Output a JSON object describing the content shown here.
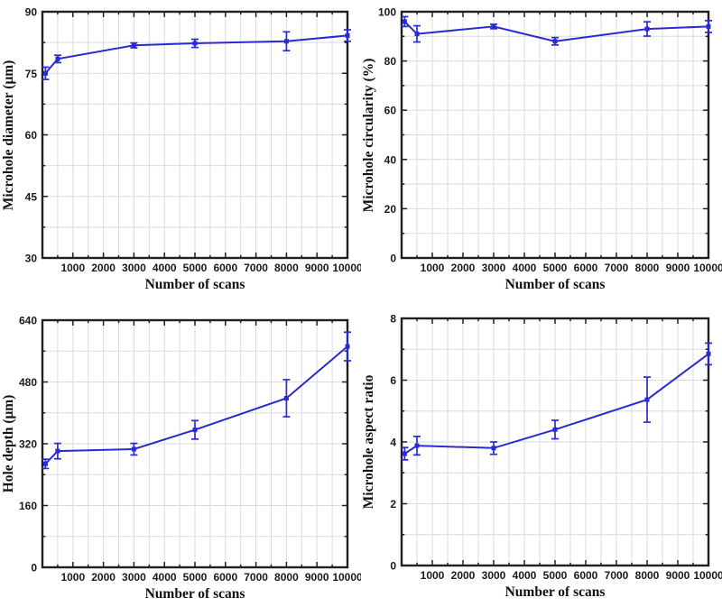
{
  "style": {
    "accent": "#2a2ad2",
    "grid_color": "#d8dbe2",
    "axis_color": "#1f1f1f",
    "background": "#ffffff"
  },
  "chart_data": {
    "type": "line",
    "shared_x": [
      100,
      500,
      3000,
      5000,
      8000,
      10000
    ],
    "shared_xlabel": "Number of scans",
    "note": "Four-panel figure of femtosecond-laser microhole drilling metrics vs number of scans; blue lines with square markers and vertical error bars; light gray grid at every minor tick; black box axes."
  },
  "charts": [
    {
      "name": "microhole-diameter",
      "type": "line",
      "xlabel": "Number of scans",
      "ylabel": "Microhole diameter (μm)",
      "x": [
        100,
        500,
        3000,
        5000,
        8000,
        10000
      ],
      "y": [
        75,
        78.5,
        81.8,
        82.3,
        82.8,
        84.2
      ],
      "yerr": [
        1.5,
        0.9,
        0.6,
        1.0,
        2.3,
        1.4
      ],
      "xlim": [
        0,
        10000
      ],
      "ylim": [
        30,
        90
      ],
      "xtick_major": 1000,
      "xtick_minor": 500,
      "ytick_major": 15,
      "ytick_minor": 7.5,
      "grid": true,
      "legend": "none"
    },
    {
      "name": "microhole-circularity",
      "type": "line",
      "xlabel": "Number of scans",
      "ylabel": "Microhole circularity (%)",
      "x": [
        100,
        500,
        3000,
        5000,
        8000,
        10000
      ],
      "y": [
        96,
        91,
        94,
        88,
        93,
        94
      ],
      "yerr": [
        2.0,
        3.3,
        0.9,
        1.5,
        2.9,
        2.4
      ],
      "xlim": [
        0,
        10000
      ],
      "ylim": [
        0,
        100
      ],
      "xtick_major": 1000,
      "xtick_minor": 500,
      "ytick_major": 20,
      "ytick_minor": 10,
      "grid": true,
      "legend": "none"
    },
    {
      "name": "hole-depth",
      "type": "line",
      "xlabel": "Number of scans",
      "ylabel": "Hole depth (μm)",
      "x": [
        100,
        500,
        3000,
        5000,
        8000,
        10000
      ],
      "y": [
        268,
        301,
        306,
        356,
        438,
        572
      ],
      "yerr": [
        12,
        20,
        15,
        24,
        48,
        37
      ],
      "xlim": [
        0,
        10000
      ],
      "ylim": [
        0,
        640
      ],
      "xtick_major": 1000,
      "xtick_minor": 500,
      "ytick_major": 160,
      "ytick_minor": 80,
      "grid": true,
      "legend": "none"
    },
    {
      "name": "microhole-aspect-ratio",
      "type": "line",
      "xlabel": "Number of scans",
      "ylabel": "Microhole aspect ratio",
      "x": [
        100,
        500,
        3000,
        5000,
        8000,
        10000
      ],
      "y": [
        3.62,
        3.88,
        3.8,
        4.4,
        5.37,
        6.85
      ],
      "yerr": [
        0.2,
        0.3,
        0.2,
        0.3,
        0.73,
        0.35
      ],
      "xlim": [
        0,
        10000
      ],
      "ylim": [
        0,
        8
      ],
      "xtick_major": 1000,
      "xtick_minor": 500,
      "ytick_major": 2,
      "ytick_minor": 1,
      "grid": true,
      "legend": "none"
    }
  ]
}
